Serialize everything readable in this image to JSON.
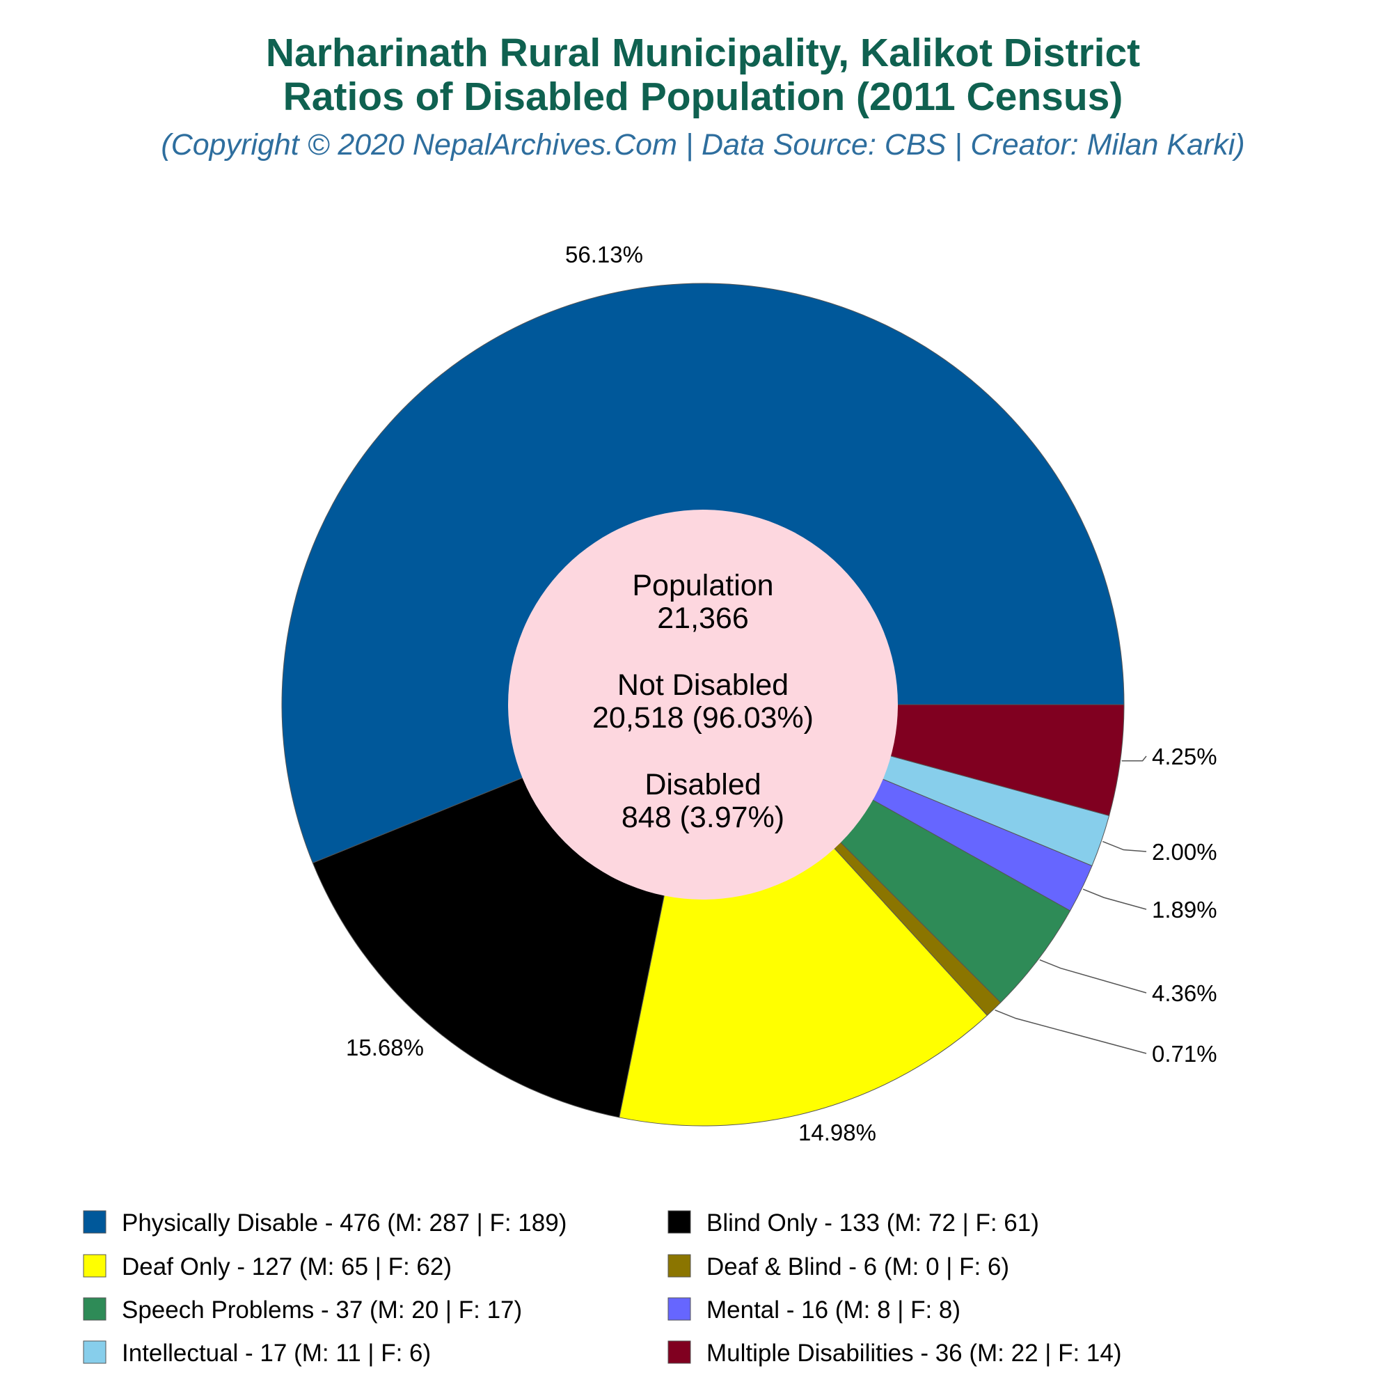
{
  "chart_data": {
    "type": "pie",
    "title": "Narharinath Rural Municipality, Kalikot District",
    "subtitle": "Ratios of Disabled Population (2011 Census)",
    "credit": "(Copyright © 2020 NepalArchives.Com | Data Source: CBS | Creator: Milan Karki)",
    "center": {
      "population_label": "Population",
      "population_value": "21,366",
      "not_disabled_label": "Not Disabled",
      "not_disabled_value": "20,518 (96.03%)",
      "disabled_label": "Disabled",
      "disabled_value": "848 (3.97%)"
    },
    "legend_position": "bottom",
    "slices": [
      {
        "name": "Physically Disable",
        "value": 476,
        "male": 287,
        "female": 189,
        "percent": "56.13%",
        "color": "#00589a",
        "legend": "Physically Disable - 476 (M: 287 | F: 189)"
      },
      {
        "name": "Blind Only",
        "value": 133,
        "male": 72,
        "female": 61,
        "percent": "15.68%",
        "color": "#000000",
        "legend": "Blind Only - 133 (M: 72 | F: 61)"
      },
      {
        "name": "Deaf Only",
        "value": 127,
        "male": 65,
        "female": 62,
        "percent": "14.98%",
        "color": "#ffff00",
        "legend": "Deaf Only - 127 (M: 65 | F: 62)"
      },
      {
        "name": "Deaf & Blind",
        "value": 6,
        "male": 0,
        "female": 6,
        "percent": "0.71%",
        "color": "#8b7500",
        "legend": "Deaf & Blind - 6 (M: 0 | F: 6)"
      },
      {
        "name": "Speech Problems",
        "value": 37,
        "male": 20,
        "female": 17,
        "percent": "4.36%",
        "color": "#2e8b57",
        "legend": "Speech Problems - 37 (M: 20 | F: 17)"
      },
      {
        "name": "Mental",
        "value": 16,
        "male": 8,
        "female": 8,
        "percent": "1.89%",
        "color": "#6666ff",
        "legend": "Mental - 16 (M: 8 | F: 8)"
      },
      {
        "name": "Intellectual",
        "value": 17,
        "male": 11,
        "female": 6,
        "percent": "2.00%",
        "color": "#87ceeb",
        "legend": "Intellectual - 17 (M: 11 | F: 6)"
      },
      {
        "name": "Multiple Disabilities",
        "value": 36,
        "male": 22,
        "female": 14,
        "percent": "4.25%",
        "color": "#800020",
        "legend": "Multiple Disabilities - 36 (M: 22 | F: 14)"
      }
    ]
  }
}
